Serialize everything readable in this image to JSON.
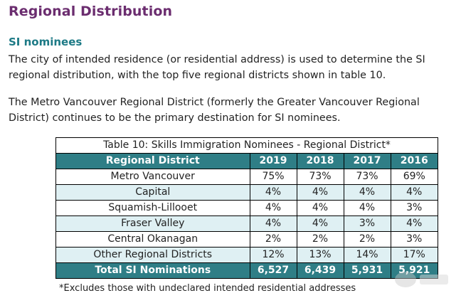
{
  "heading": "Regional Distribution",
  "subheading": "SI nominees",
  "paragraph1": "The city of intended residence (or residential address) is used to determine the SI regional distribution, with the top five regional districts shown in table 10.",
  "paragraph2": "The Metro Vancouver Regional District (formerly the Greater Vancouver Regional District) continues to be the primary destination for SI nominees.",
  "table": {
    "caption": "Table 10: Skills Immigration Nominees - Regional District*",
    "headers": [
      "Regional District",
      "2019",
      "2018",
      "2017",
      "2016"
    ],
    "rows": [
      [
        "Metro Vancouver",
        "75%",
        "73%",
        "73%",
        "69%"
      ],
      [
        "Capital",
        "4%",
        "4%",
        "4%",
        "4%"
      ],
      [
        "Squamish-Lillooet",
        "4%",
        "4%",
        "4%",
        "3%"
      ],
      [
        "Fraser Valley",
        "4%",
        "4%",
        "3%",
        "4%"
      ],
      [
        "Central Okanagan",
        "2%",
        "2%",
        "2%",
        "3%"
      ],
      [
        "Other Regional Districts",
        "12%",
        "13%",
        "14%",
        "17%"
      ]
    ],
    "total": [
      "Total SI Nominations",
      "6,527",
      "6,439",
      "5,931",
      "5,921"
    ]
  },
  "footnote": "*Excludes those with undeclared intended residential addresses",
  "colors": {
    "heading": "#6b2d6f",
    "subheading": "#1d7a86",
    "table_header": "#2f7e86",
    "row_alt": "#dff0f3"
  }
}
